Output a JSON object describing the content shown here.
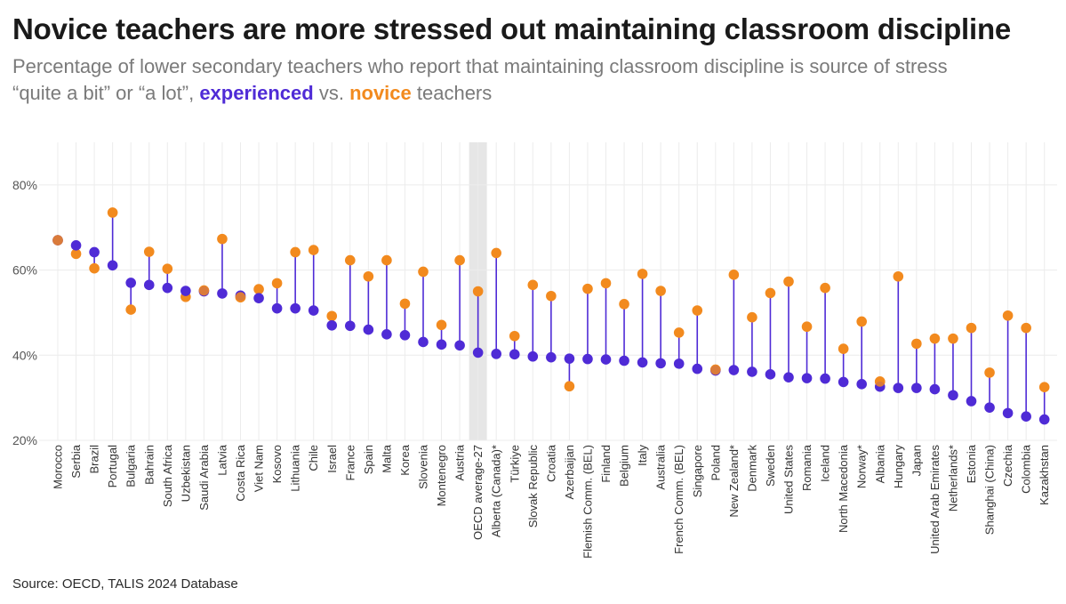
{
  "title": "Novice teachers are more stressed out maintaining classroom discipline",
  "subtitle": {
    "line1": "Percentage of lower secondary teachers who report that maintaining classroom discipline is source of stress",
    "line2_before": "“quite a bit” or “a lot”, ",
    "experienced": "experienced",
    "vs": " vs. ",
    "novice": "novice",
    "line2_after": " teachers"
  },
  "source": "Source: OECD, TALIS 2024 Database",
  "colors": {
    "experienced": "#4f2bd6",
    "novice": "#f28a1e",
    "connector": "#4f2bd6",
    "highlight": "#e6e6e6",
    "grid": "#ececec"
  },
  "chart_data": {
    "type": "dumbbell",
    "ylim": [
      20,
      90
    ],
    "yticks": [
      {
        "value": 20,
        "label": "20%"
      },
      {
        "value": 40,
        "label": "40%"
      },
      {
        "value": 60,
        "label": "60%"
      },
      {
        "value": 80,
        "label": "80%"
      }
    ],
    "highlight_category": "OECD average-27",
    "grid": true,
    "series": [
      {
        "key": "experienced",
        "values": [
          67,
          65.8,
          64.2,
          61.1,
          57,
          56.5,
          55.8,
          55.1,
          55,
          54.5,
          54,
          53.4,
          51,
          51,
          50.5,
          47,
          46.9,
          46,
          44.9,
          44.7,
          43.1,
          42.5,
          42.3,
          40.6,
          40.3,
          40.2,
          39.7,
          39.5,
          39.2,
          39.1,
          39,
          38.7,
          38.3,
          38.1,
          38,
          36.8,
          36.4,
          36.5,
          36.1,
          35.5,
          34.8,
          34.6,
          34.5,
          33.7,
          33.2,
          32.6,
          32.3,
          32.3,
          32,
          30.6,
          29.2,
          27.7,
          26.4,
          25.6,
          24.9
        ]
      },
      {
        "key": "novice",
        "values": [
          67,
          63.8,
          60.4,
          73.5,
          50.7,
          64.3,
          60.3,
          53.7,
          55.2,
          67.3,
          53.6,
          55.5,
          56.9,
          64.2,
          64.7,
          49.2,
          62.3,
          58.5,
          62.3,
          52.1,
          59.6,
          47.1,
          62.3,
          55,
          64,
          44.5,
          56.5,
          53.9,
          32.7,
          55.6,
          56.9,
          52,
          59.1,
          55.1,
          45.3,
          50.5,
          36.6,
          58.9,
          48.9,
          54.6,
          57.3,
          46.7,
          55.8,
          41.5,
          47.9,
          33.8,
          58.5,
          42.7,
          43.9,
          43.9,
          46.4,
          35.9,
          49.3,
          46.4,
          32.5
        ]
      }
    ],
    "categories": [
      "Morocco",
      "Serbia",
      "Brazil",
      "Portugal",
      "Bulgaria",
      "Bahrain",
      "South Africa",
      "Uzbekistan",
      "Saudi Arabia",
      "Latvia",
      "Costa Rica",
      "Viet Nam",
      "Kosovo",
      "Lithuania",
      "Chile",
      "Israel",
      "France",
      "Spain",
      "Malta",
      "Korea",
      "Slovenia",
      "Montenegro",
      "Austria",
      "OECD average-27",
      "Alberta (Canada)*",
      "Türkiye",
      "Slovak Republic",
      "Croatia",
      "Azerbaijan",
      "Flemish Comm. (BEL)",
      "Finland",
      "Belgium",
      "Italy",
      "Australia",
      "French Comm. (BEL)",
      "Singapore",
      "Poland",
      "New Zealand*",
      "Denmark",
      "Sweden",
      "United States",
      "Romania",
      "Iceland",
      "North Macedonia",
      "Norway*",
      "Albania",
      "Hungary",
      "Japan",
      "United Arab Emirates",
      "Netherlands*",
      "Estonia",
      "Shanghai (China)",
      "Czechia",
      "Colombia",
      "Kazakhstan"
    ]
  }
}
